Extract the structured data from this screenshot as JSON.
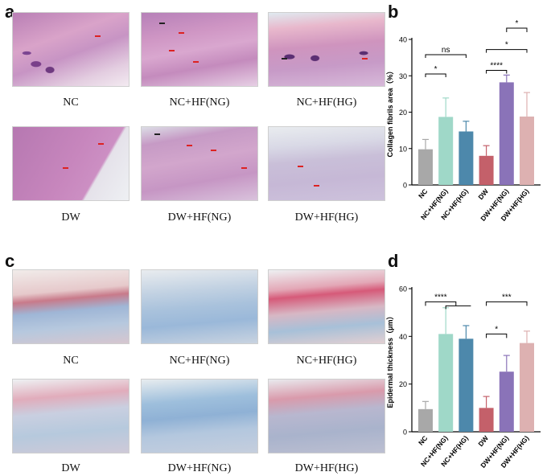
{
  "panels": {
    "a": {
      "letter": "a",
      "captions": [
        "NC",
        "NC+HF(NG)",
        "NC+HF(HG)",
        "DW",
        "DW+HF(NG)",
        "DW+HF(HG)"
      ]
    },
    "b": {
      "letter": "b"
    },
    "c": {
      "letter": "c",
      "captions": [
        "NC",
        "NC+HF(NG)",
        "NC+HF(HG)",
        "DW",
        "DW+HF(NG)",
        "DW+HF(HG)"
      ]
    },
    "d": {
      "letter": "d"
    }
  },
  "colors": {
    "NC": "#a8a8a8",
    "NC+HF(NG)": "#9fd8c8",
    "NC+HF(HG)": "#4d88ab",
    "DW": "#c4606a",
    "DW+HF(NG)": "#8a73b8",
    "DW+HF(HG)": "#ddb1b1"
  },
  "chart_data": [
    {
      "type": "bar",
      "panel": "b",
      "categories": [
        "NC",
        "NC+HF(NG)",
        "NC+HF(HG)",
        "DW",
        "DW+HF(NG)",
        "DW+HF(HG)"
      ],
      "values": [
        9.8,
        18.7,
        14.7,
        8.0,
        28.2,
        18.8
      ],
      "errors": [
        2.7,
        5.2,
        2.8,
        2.8,
        2.0,
        6.6
      ],
      "ylabel": "Collagen fibrils area（%）",
      "ylim": [
        0,
        40
      ],
      "yticks": [
        0,
        10,
        20,
        30,
        40
      ],
      "significance": [
        {
          "from": 0,
          "to": 1,
          "label": "*"
        },
        {
          "from": 0,
          "to": 2,
          "label": "ns"
        },
        {
          "from": 3,
          "to": 4,
          "label": "****"
        },
        {
          "from": 3,
          "to": 5,
          "label": "*"
        },
        {
          "from": 4,
          "to": 5,
          "label": "*"
        }
      ]
    },
    {
      "type": "bar",
      "panel": "d",
      "categories": [
        "NC",
        "NC+HF(NG)",
        "NC+HF(HG)",
        "DW",
        "DW+HF(NG)",
        "DW+HF(HG)"
      ],
      "values": [
        9.5,
        41.0,
        39.0,
        10.0,
        25.2,
        37.2
      ],
      "errors": [
        3.2,
        11.0,
        5.5,
        4.8,
        6.8,
        5.0
      ],
      "ylabel": "Epidermal thickness（μm）",
      "ylim": [
        0,
        60
      ],
      "yticks": [
        0,
        20,
        40,
        60
      ],
      "significance": [
        {
          "from": 0,
          "to": 1.5,
          "label": "****",
          "bracket": "1-2"
        },
        {
          "from": 3,
          "to": 4,
          "label": "*"
        },
        {
          "from": 3,
          "to": 5,
          "label": "***"
        }
      ]
    }
  ]
}
